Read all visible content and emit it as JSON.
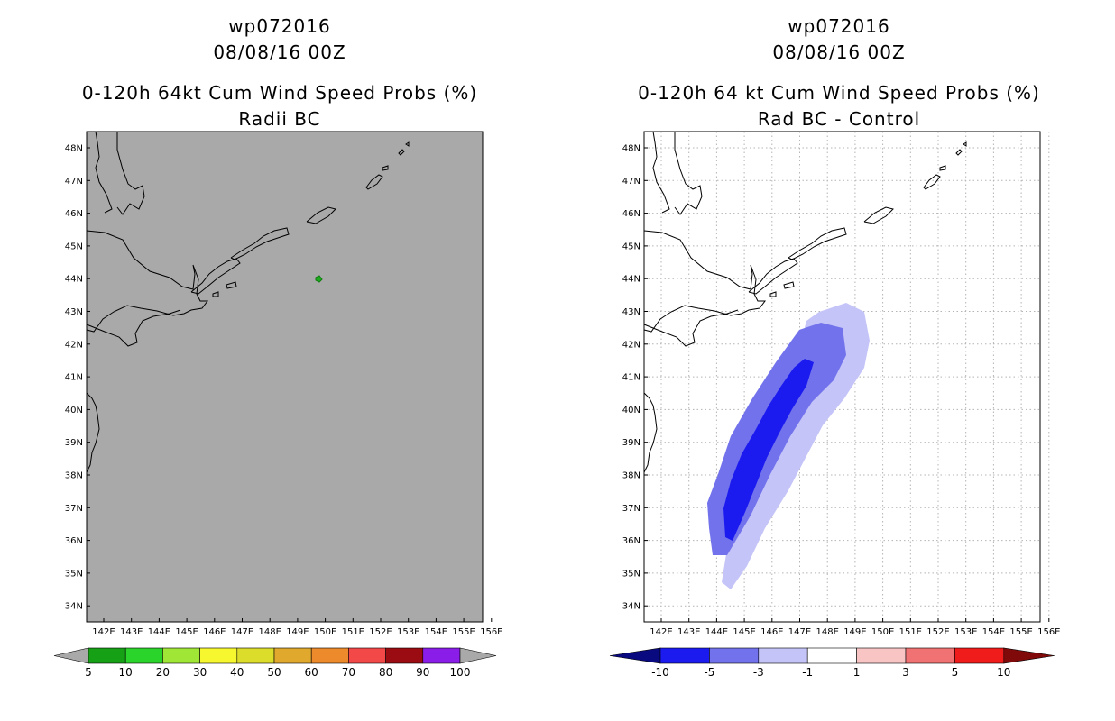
{
  "colors": {
    "land_sea_bg": "#a9a9a9",
    "coast": "#000000",
    "grid": "#b4b4b4",
    "blue_light": "#c4c4f8",
    "blue_mid": "#7272ec",
    "blue_dark": "#1b1bf0",
    "green_spot": "#1faa1f"
  },
  "left_panel": {
    "title_id": "wp072016",
    "title_date": "08/08/16 00Z",
    "title_product": "0-120h 64kt Cum Wind Speed Probs (%)",
    "title_sub": "Radii BC",
    "lat_labels": [
      "48N",
      "47N",
      "46N",
      "45N",
      "44N",
      "43N",
      "42N",
      "41N",
      "40N",
      "39N",
      "38N",
      "37N",
      "36N",
      "35N",
      "34N"
    ],
    "lon_labels": [
      "142E",
      "143E",
      "144E",
      "145E",
      "146E",
      "147E",
      "148E",
      "149E",
      "150E",
      "151E",
      "152E",
      "153E",
      "154E",
      "155E",
      "156E"
    ],
    "colorbar": {
      "labels": [
        "5",
        "10",
        "20",
        "30",
        "40",
        "50",
        "60",
        "70",
        "80",
        "90",
        "100"
      ],
      "colors": [
        "#15a015",
        "#2bd42b",
        "#a0e636",
        "#f7f72f",
        "#dcdc2b",
        "#e0a92e",
        "#ec8a2c",
        "#f24848",
        "#9a0b12",
        "#8a1ee8"
      ],
      "end_color": "#a9a9a9"
    }
  },
  "right_panel": {
    "title_id": "wp072016",
    "title_date": "08/08/16 00Z",
    "title_product": "0-120h 64 kt Cum Wind Speed Probs (%)",
    "title_sub": "Rad BC - Control",
    "lat_labels": [
      "48N",
      "47N",
      "46N",
      "45N",
      "44N",
      "43N",
      "42N",
      "41N",
      "40N",
      "39N",
      "38N",
      "37N",
      "36N",
      "35N",
      "34N"
    ],
    "lon_labels": [
      "142E",
      "143E",
      "144E",
      "145E",
      "146E",
      "147E",
      "148E",
      "149E",
      "150E",
      "151E",
      "152E",
      "153E",
      "154E",
      "155E",
      "156E"
    ],
    "colorbar": {
      "labels": [
        "-10",
        "-5",
        "-3",
        "-1",
        "1",
        "3",
        "5",
        "10"
      ],
      "colors": [
        "#1b1bf0",
        "#7272ec",
        "#c4c4f8",
        "#ffffff",
        "#f8c4c4",
        "#f07272",
        "#f01b1b"
      ],
      "left_end_color": "#0a0a80",
      "right_end_color": "#800a0a"
    }
  }
}
